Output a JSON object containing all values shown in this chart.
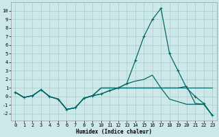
{
  "xlabel": "Humidex (Indice chaleur)",
  "bg_color": "#cce8e8",
  "grid_color": "#aacccc",
  "line_color": "#006666",
  "xlim": [
    -0.5,
    23.5
  ],
  "ylim": [
    -2.8,
    11.0
  ],
  "xticks": [
    0,
    1,
    2,
    3,
    4,
    5,
    6,
    7,
    8,
    9,
    10,
    11,
    12,
    13,
    14,
    15,
    16,
    17,
    18,
    19,
    20,
    21,
    22,
    23
  ],
  "yticks": [
    -2,
    -1,
    0,
    1,
    2,
    3,
    4,
    5,
    6,
    7,
    8,
    9,
    10
  ],
  "line1_y": [
    0.5,
    -0.1,
    0.1,
    0.8,
    0.0,
    -0.3,
    -1.5,
    -1.3,
    -0.2,
    0.1,
    0.3,
    0.7,
    1.0,
    1.5,
    4.2,
    7.0,
    9.0,
    10.3,
    5.0,
    3.0,
    1.0,
    0.0,
    -0.8,
    -2.2
  ],
  "line2_y": [
    0.5,
    -0.1,
    0.1,
    0.8,
    0.0,
    -0.3,
    -1.5,
    -1.3,
    -0.2,
    0.1,
    1.0,
    1.0,
    1.0,
    1.0,
    1.0,
    1.0,
    1.0,
    1.0,
    1.0,
    1.0,
    1.0,
    1.0,
    1.0,
    1.0
  ],
  "line3_y": [
    0.5,
    -0.1,
    0.1,
    0.8,
    0.0,
    -0.3,
    -1.5,
    -1.3,
    -0.2,
    0.1,
    1.0,
    1.0,
    1.0,
    1.0,
    1.0,
    1.0,
    1.0,
    1.0,
    1.0,
    1.0,
    1.2,
    -0.8,
    -0.9,
    -2.2
  ],
  "line4_y": [
    0.5,
    -0.1,
    0.1,
    0.8,
    0.0,
    -0.3,
    -1.5,
    -1.3,
    -0.2,
    0.1,
    0.3,
    0.7,
    1.0,
    1.5,
    1.8,
    2.0,
    2.5,
    1.0,
    -0.3,
    -0.6,
    -0.9,
    -0.9,
    -0.9,
    -2.2
  ],
  "xlabel_fontsize": 5.5,
  "tick_fontsize": 5,
  "lw": 0.9,
  "marker_size": 3
}
